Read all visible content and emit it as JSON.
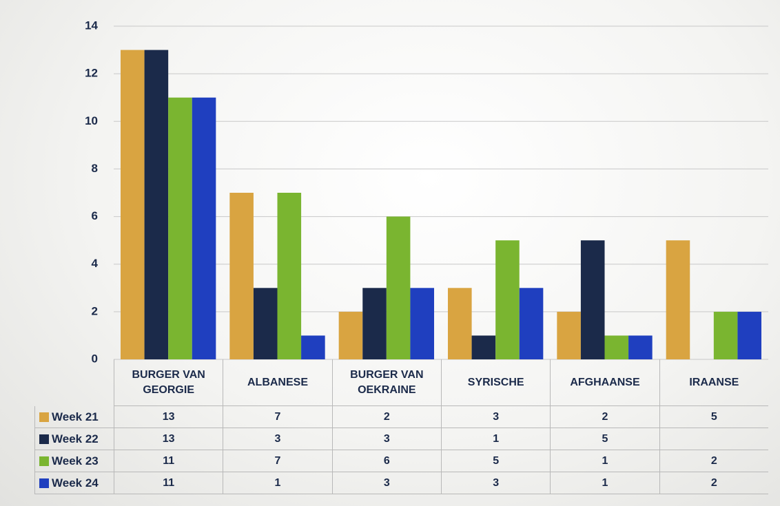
{
  "chart_data": {
    "type": "bar",
    "categories": [
      "BURGER VAN GEORGIE",
      "ALBANESE",
      "BURGER VAN OEKRAINE",
      "SYRISCHE",
      "AFGHAANSE",
      "IRAANSE"
    ],
    "series": [
      {
        "name": "Week 21",
        "color": "#d9a441",
        "values": [
          13,
          7,
          2,
          3,
          2,
          5
        ]
      },
      {
        "name": "Week 22",
        "color": "#1b2a4a",
        "values": [
          13,
          3,
          3,
          1,
          5,
          null
        ]
      },
      {
        "name": "Week 23",
        "color": "#7ab530",
        "values": [
          11,
          7,
          6,
          5,
          1,
          2
        ]
      },
      {
        "name": "Week 24",
        "color": "#1f3fbf",
        "values": [
          11,
          1,
          3,
          3,
          1,
          2
        ]
      }
    ],
    "ylim": [
      0,
      14
    ],
    "yticks": [
      0,
      2,
      4,
      6,
      8,
      10,
      12,
      14
    ],
    "grid": true
  }
}
